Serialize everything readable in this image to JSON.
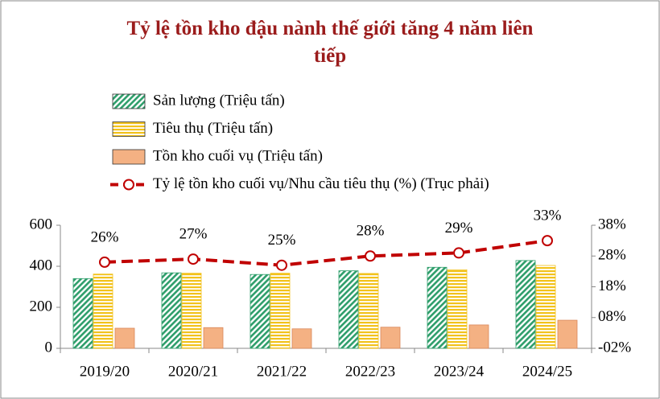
{
  "chart_data": {
    "type": "bar",
    "title": "Tỷ lệ tồn kho đậu nành thế giới tăng 4 năm liên tiếp",
    "categories": [
      "2019/20",
      "2020/21",
      "2021/22",
      "2022/23",
      "2023/24",
      "2024/25"
    ],
    "series": [
      {
        "name": "Sản lượng (Triệu tấn)",
        "color": "#2e9e6b",
        "fill": "diagonal",
        "values": [
          340,
          368,
          360,
          378,
          395,
          428
        ]
      },
      {
        "name": "Tiêu thụ (Triệu tấn)",
        "color": "#f2c21b",
        "fill": "horizontal",
        "values": [
          362,
          366,
          366,
          365,
          383,
          404
        ]
      },
      {
        "name": "Tồn kho cuối vụ (Triệu tấn)",
        "color": "#f4b183",
        "fill": "solid",
        "values": [
          98,
          101,
          95,
          103,
          114,
          137
        ]
      },
      {
        "name": "Tỷ lệ tồn kho cuối vụ/Nhu cầu tiêu thụ (%) (Trục phải)",
        "color": "#c00000",
        "type": "line",
        "axis": "y2",
        "values": [
          26,
          27,
          25,
          28,
          29,
          33
        ],
        "value_labels": [
          "26%",
          "27%",
          "25%",
          "28%",
          "29%",
          "33%"
        ]
      }
    ],
    "ylim": [
      0,
      600
    ],
    "yticks": [
      0,
      200,
      400,
      600
    ],
    "y2lim": [
      -2,
      38
    ],
    "y2ticks": [
      {
        "value": -2,
        "label": "-02%"
      },
      {
        "value": 8,
        "label": "08%"
      },
      {
        "value": 18,
        "label": "18%"
      },
      {
        "value": 28,
        "label": "28%"
      },
      {
        "value": 38,
        "label": "38%"
      }
    ],
    "grid": false
  }
}
